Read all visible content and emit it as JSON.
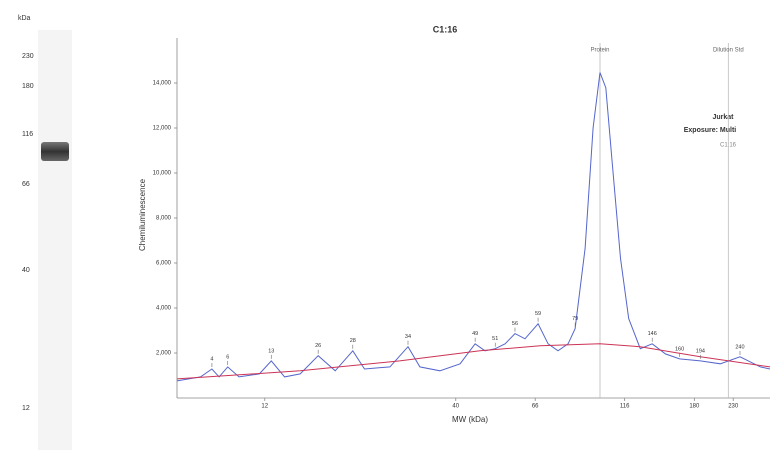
{
  "lane": {
    "unit": "kDa",
    "markers": [
      "230",
      "180",
      "116",
      "66",
      "40",
      "12"
    ]
  },
  "chart_data": {
    "type": "line",
    "title": "C1:16",
    "xlabel": "MW (kDa)",
    "ylabel": "Chemiluminescence",
    "xscale": "log",
    "xlim": [
      6.9,
      290
    ],
    "xticks": [
      12,
      40,
      66,
      116,
      180,
      230
    ],
    "ylim": [
      0,
      16000
    ],
    "yticks": [
      {
        "value": 2000,
        "label": "2,000"
      },
      {
        "value": 4000,
        "label": "4,000"
      },
      {
        "value": 6000,
        "label": "6,000"
      },
      {
        "value": 8000,
        "label": "8,000"
      },
      {
        "value": 10000,
        "label": "10,000"
      },
      {
        "value": 12000,
        "label": "12,000"
      },
      {
        "value": 14000,
        "label": "14,000"
      }
    ],
    "series": [
      {
        "color": "#5566cc",
        "x": [
          6.9,
          8.0,
          8.6,
          9.0,
          9.5,
          10.2,
          11.6,
          12.5,
          13.6,
          15.0,
          16.8,
          18.7,
          20.9,
          22.5,
          26.4,
          29.6,
          31.9,
          36.2,
          41.1,
          45.2,
          48.1,
          51.3,
          54.6,
          58.1,
          61.9,
          67.2,
          71.6,
          76.2,
          81.2,
          84.9,
          90.4,
          95.1,
          99.3,
          103,
          107,
          113,
          119,
          128,
          138,
          150,
          164,
          187,
          212,
          240,
          273,
          290
        ],
        "values": [
          760,
          940,
          1290,
          940,
          1380,
          940,
          1070,
          1650,
          940,
          1070,
          1880,
          1210,
          2100,
          1290,
          1380,
          2280,
          1380,
          1210,
          1520,
          2410,
          2100,
          2190,
          2410,
          2860,
          2630,
          3300,
          2410,
          2100,
          2410,
          3080,
          6650,
          12010,
          14460,
          13790,
          10670,
          6210,
          3530,
          2190,
          2410,
          1960,
          1740,
          1650,
          1520,
          1830,
          1380,
          1290
        ]
      },
      {
        "color": "#cc3355",
        "x": [
          6.9,
          15.0,
          28.1,
          46.6,
          68.1,
          99.3,
          128,
          187,
          290
        ],
        "values": [
          850,
          1210,
          1650,
          2100,
          2320,
          2410,
          2280,
          1830,
          1380
        ]
      }
    ],
    "peaks": [
      {
        "x": 8.6,
        "y": 1290,
        "label": "4"
      },
      {
        "x": 9.5,
        "y": 1380,
        "label": "6"
      },
      {
        "x": 12.5,
        "y": 1650,
        "label": "13"
      },
      {
        "x": 16.8,
        "y": 1880,
        "label": "26"
      },
      {
        "x": 20.9,
        "y": 2100,
        "label": "28"
      },
      {
        "x": 29.6,
        "y": 2280,
        "label": "34"
      },
      {
        "x": 45.2,
        "y": 2410,
        "label": "49"
      },
      {
        "x": 51.3,
        "y": 2190,
        "label": "51"
      },
      {
        "x": 58.1,
        "y": 2860,
        "label": "56"
      },
      {
        "x": 67.2,
        "y": 3300,
        "label": "59"
      },
      {
        "x": 84.9,
        "y": 3080,
        "label": "79"
      },
      {
        "x": 138,
        "y": 2410,
        "label": "146"
      },
      {
        "x": 164,
        "y": 1740,
        "label": "160"
      },
      {
        "x": 187,
        "y": 1650,
        "label": "194"
      },
      {
        "x": 240,
        "y": 1830,
        "label": "240"
      }
    ],
    "markers": [
      {
        "x": 99.3,
        "label": "Protein"
      },
      {
        "x": 223,
        "label": "Dilution Std"
      }
    ],
    "annotation": {
      "title": "Jurkat",
      "line": "Exposure: Multi",
      "sub": "C1:16"
    }
  }
}
